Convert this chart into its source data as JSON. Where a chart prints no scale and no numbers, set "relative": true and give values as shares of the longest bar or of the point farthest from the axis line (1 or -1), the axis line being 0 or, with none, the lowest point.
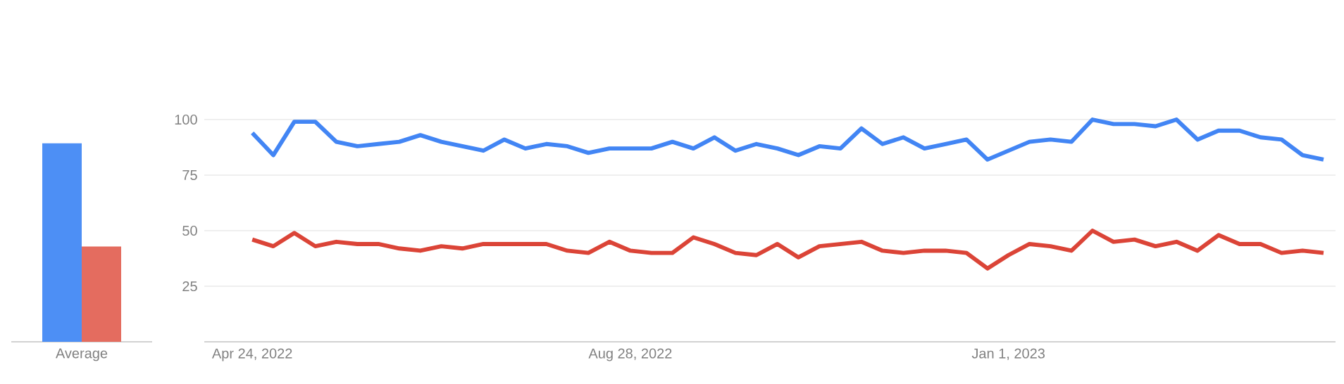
{
  "chart_data": [
    {
      "type": "bar",
      "relative": true,
      "categories": [
        "Average"
      ],
      "series": [
        {
          "color": "#4d8ff5",
          "values": [
            1
          ]
        },
        {
          "color": "#e46c5f",
          "values": [
            0.48
          ]
        }
      ]
    },
    {
      "type": "line",
      "grid": "y",
      "xlim": [
        "2022-04-08",
        "2023-04-20"
      ],
      "ylim": [
        0,
        100
      ],
      "yticks": [
        25,
        50,
        75,
        100
      ],
      "xticks": [
        {
          "value": "2022-04-24",
          "label": "Apr 24, 2022"
        },
        {
          "value": "2022-08-28",
          "label": "Aug 28, 2022"
        },
        {
          "value": "2023-01-01",
          "label": "Jan 1, 2023"
        }
      ],
      "x": [
        "2022-04-24",
        "2022-05-01",
        "2022-05-08",
        "2022-05-15",
        "2022-05-22",
        "2022-05-29",
        "2022-06-05",
        "2022-06-12",
        "2022-06-19",
        "2022-06-26",
        "2022-07-03",
        "2022-07-10",
        "2022-07-17",
        "2022-07-24",
        "2022-07-31",
        "2022-08-07",
        "2022-08-14",
        "2022-08-21",
        "2022-08-28",
        "2022-09-04",
        "2022-09-11",
        "2022-09-18",
        "2022-09-25",
        "2022-10-02",
        "2022-10-09",
        "2022-10-16",
        "2022-10-23",
        "2022-10-30",
        "2022-11-06",
        "2022-11-13",
        "2022-11-20",
        "2022-11-27",
        "2022-12-04",
        "2022-12-11",
        "2022-12-18",
        "2022-12-25",
        "2023-01-01",
        "2023-01-08",
        "2023-01-15",
        "2023-01-22",
        "2023-01-29",
        "2023-02-05",
        "2023-02-12",
        "2023-02-19",
        "2023-02-26",
        "2023-03-05",
        "2023-03-12",
        "2023-03-19",
        "2023-03-26",
        "2023-04-02",
        "2023-04-09",
        "2023-04-16"
      ],
      "series": [
        {
          "color": "#4285f4",
          "values": [
            94,
            84,
            99,
            99,
            90,
            88,
            89,
            90,
            93,
            90,
            88,
            86,
            91,
            87,
            89,
            88,
            85,
            87,
            87,
            87,
            90,
            87,
            92,
            86,
            89,
            87,
            84,
            88,
            87,
            96,
            89,
            92,
            87,
            89,
            91,
            82,
            86,
            90,
            91,
            90,
            100,
            98,
            98,
            97,
            100,
            91,
            95,
            95,
            92,
            91,
            84,
            82
          ]
        },
        {
          "color": "#db4437",
          "values": [
            46,
            43,
            49,
            43,
            45,
            44,
            44,
            42,
            41,
            43,
            42,
            44,
            44,
            44,
            44,
            41,
            40,
            45,
            41,
            40,
            40,
            47,
            44,
            40,
            39,
            44,
            38,
            43,
            44,
            45,
            41,
            40,
            41,
            41,
            40,
            33,
            39,
            44,
            43,
            41,
            50,
            45,
            46,
            43,
            45,
            41,
            48,
            44,
            44,
            40,
            41,
            40
          ]
        }
      ]
    }
  ]
}
